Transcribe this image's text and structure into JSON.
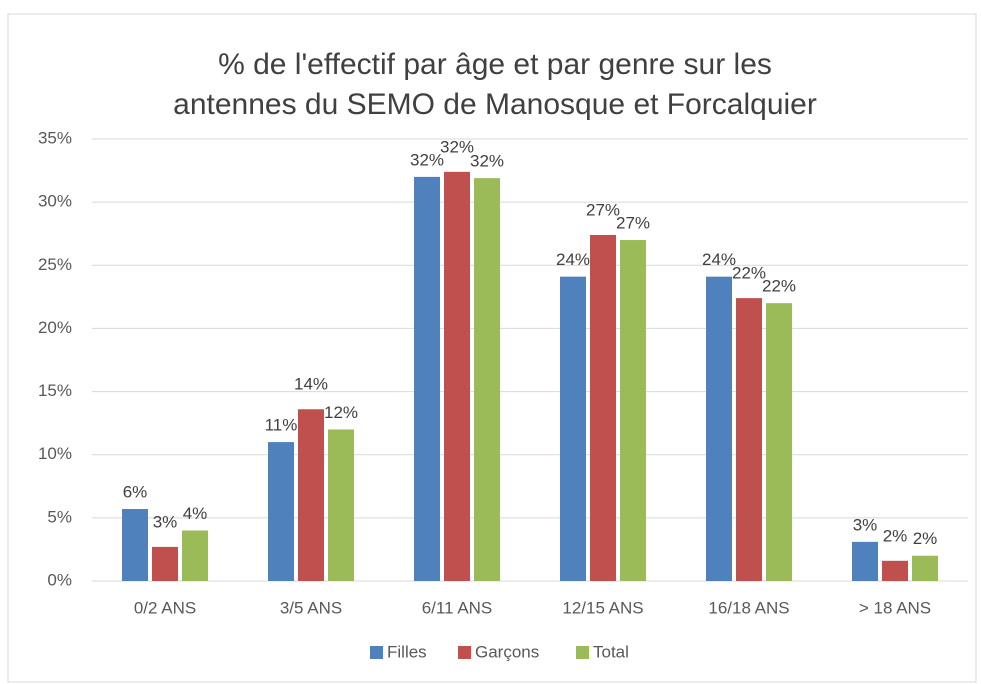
{
  "chart_data": {
    "type": "bar",
    "title": [
      "% de l'effectif par âge et par genre sur les",
      "antennes du SEMO de Manosque et Forcalquier"
    ],
    "categories": [
      "0/2 ANS",
      "3/5 ANS",
      "6/11 ANS",
      "12/15 ANS",
      "16/18 ANS",
      "> 18 ANS"
    ],
    "series": [
      {
        "name": "Filles",
        "color": "#4f81bd",
        "values": [
          5.7,
          11.0,
          32.0,
          24.1,
          24.1,
          3.1
        ],
        "value_labels": [
          "6%",
          "11%",
          "32%",
          "24%",
          "24%",
          "3%"
        ]
      },
      {
        "name": "Garçons",
        "color": "#c0504d",
        "values": [
          2.7,
          13.6,
          32.4,
          27.4,
          22.4,
          1.6
        ],
        "value_labels": [
          "3%",
          "14%",
          "32%",
          "27%",
          "22%",
          "2%"
        ]
      },
      {
        "name": "Total",
        "color": "#9bbb59",
        "values": [
          4.0,
          12.0,
          31.9,
          27.0,
          22.0,
          2.0
        ],
        "value_labels": [
          "4%",
          "12%",
          "32%",
          "27%",
          "22%",
          "2%"
        ]
      }
    ],
    "ylim": [
      0,
      35
    ],
    "yticks": [
      {
        "value": 0,
        "label": "0%"
      },
      {
        "value": 5,
        "label": "5%"
      },
      {
        "value": 10,
        "label": "10%"
      },
      {
        "value": 15,
        "label": "15%"
      },
      {
        "value": 20,
        "label": "20%"
      },
      {
        "value": 25,
        "label": "25%"
      },
      {
        "value": 30,
        "label": "30%"
      },
      {
        "value": 35,
        "label": "35%"
      }
    ],
    "grid": true,
    "legend": "bottom"
  }
}
